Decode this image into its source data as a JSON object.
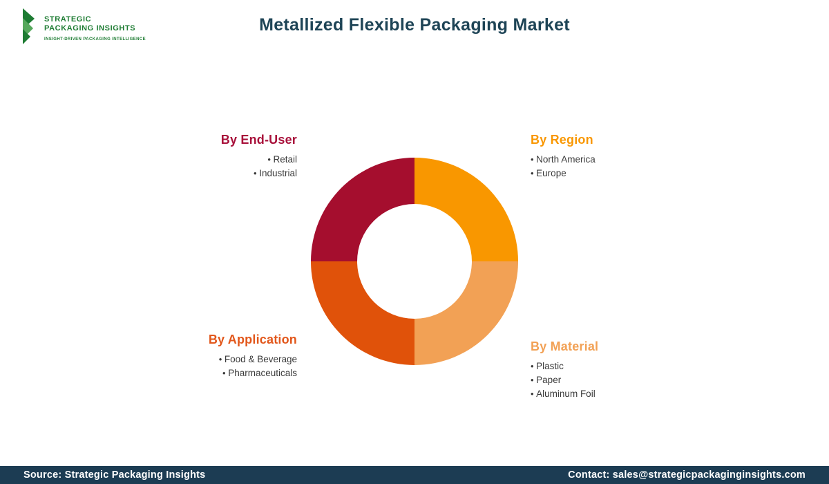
{
  "header": {
    "title": "Metallized Flexible Packaging Market",
    "logo": {
      "line1": "STRATEGIC",
      "line2": "PACKAGING INSIGHTS",
      "tagline": "INSIGHT-DRIVEN PACKAGING INTELLIGENCE",
      "green": "#1e7c33",
      "green_light": "#5cb85c"
    }
  },
  "categories": [
    {
      "id": "end-user",
      "title": "By End-User",
      "color": "#a8103a",
      "items": [
        "Retail",
        "Industrial"
      ]
    },
    {
      "id": "region",
      "title": "By Region",
      "color": "#f99700",
      "items": [
        "North America",
        "Europe"
      ]
    },
    {
      "id": "application",
      "title": "By Application",
      "color": "#e2571b",
      "items": [
        "Food & Beverage",
        "Pharmaceuticals"
      ]
    },
    {
      "id": "material",
      "title": "By Material",
      "color": "#f2a155",
      "items": [
        "Plastic",
        "Paper",
        "Aluminum Foil"
      ]
    }
  ],
  "chart_data": {
    "type": "pie",
    "donut": true,
    "inner_radius_ratio": 0.553,
    "title": "Metallized Flexible Packaging Market",
    "legend_position": "around",
    "segments": [
      {
        "id": "region",
        "label": "By Region",
        "value": 25,
        "color": "#f99700"
      },
      {
        "id": "material",
        "label": "By Material",
        "value": 25,
        "color": "#f2a155"
      },
      {
        "id": "application",
        "label": "By Application",
        "value": 25,
        "color": "#e0520a"
      },
      {
        "id": "end-user",
        "label": "By End-User",
        "value": 25,
        "color": "#a50e2e"
      }
    ]
  },
  "footer": {
    "source": "Source: Strategic Packaging Insights",
    "contact": "Contact: sales@strategicpackaginginsights.com",
    "background": "#1c3c53"
  }
}
